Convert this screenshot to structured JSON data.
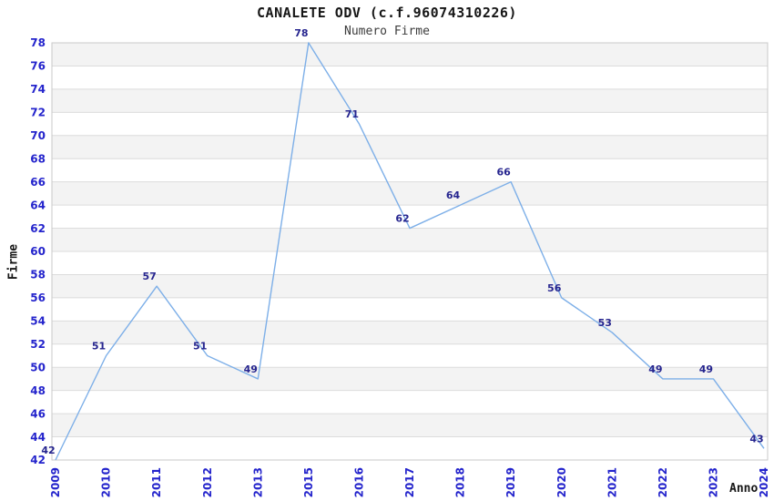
{
  "chart_data": {
    "type": "line",
    "title": "CANALETE ODV (c.f.96074310226)",
    "subtitle": "Numero Firme",
    "xlabel": "Anno",
    "ylabel": "Firme",
    "categories": [
      "2009",
      "2010",
      "2011",
      "2012",
      "2013",
      "2015",
      "2016",
      "2017",
      "2018",
      "2019",
      "2020",
      "2021",
      "2022",
      "2023",
      "2024"
    ],
    "series": [
      {
        "name": "Numero Firme",
        "values": [
          42,
          51,
          57,
          51,
          49,
          78,
          71,
          62,
          64,
          66,
          56,
          53,
          49,
          49,
          43
        ]
      }
    ],
    "data_labels_visible": true,
    "ylim": [
      42,
      78
    ],
    "ytick_step": 2,
    "yticks": [
      42,
      44,
      46,
      48,
      50,
      52,
      54,
      56,
      58,
      60,
      62,
      64,
      66,
      68,
      70,
      72,
      74,
      76,
      78
    ],
    "grid": "horizontal",
    "banded_background": true,
    "legend_position": "none",
    "xtick_rotation": -90,
    "colors": {
      "line": "#7dafe8",
      "band_fill": "#f3f3f3",
      "grid_line": "#dcdcdc",
      "plot_border": "#c9c9c9",
      "tick_label": "#2424cc",
      "data_label": "#26258f",
      "title": "#161616",
      "subtitle": "#3c3c3c",
      "background": "#ffffff"
    }
  }
}
